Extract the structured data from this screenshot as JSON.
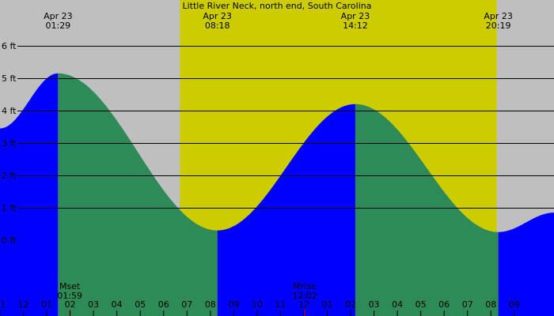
{
  "chart_data": {
    "type": "area",
    "title": "Little River Neck, north end, South Carolina",
    "y_ticks": [
      "0 ft",
      "1 ft",
      "2 ft",
      "3 ft",
      "4 ft",
      "5 ft",
      "6 ft"
    ],
    "y_tick_values": [
      0,
      1,
      2,
      3,
      4,
      5,
      6
    ],
    "ylim": [
      -1.5,
      7.0
    ],
    "xlim_hours": [
      -1.0,
      22.7
    ],
    "x_ticks": [
      {
        "label": "1",
        "hour": -1.0
      },
      {
        "label": "12",
        "hour": 0
      },
      {
        "label": "01",
        "hour": 1
      },
      {
        "label": "02",
        "hour": 2
      },
      {
        "label": "03",
        "hour": 3
      },
      {
        "label": "04",
        "hour": 4
      },
      {
        "label": "05",
        "hour": 5
      },
      {
        "label": "06",
        "hour": 6
      },
      {
        "label": "07",
        "hour": 7
      },
      {
        "label": "08",
        "hour": 8
      },
      {
        "label": "09",
        "hour": 9
      },
      {
        "label": "10",
        "hour": 10
      },
      {
        "label": "11",
        "hour": 11
      },
      {
        "label": "12",
        "hour": 12
      },
      {
        "label": "01",
        "hour": 13
      },
      {
        "label": "02",
        "hour": 14
      },
      {
        "label": "03",
        "hour": 15
      },
      {
        "label": "04",
        "hour": 16
      },
      {
        "label": "05",
        "hour": 17
      },
      {
        "label": "06",
        "hour": 18
      },
      {
        "label": "07",
        "hour": 19
      },
      {
        "label": "08",
        "hour": 20
      },
      {
        "label": "09",
        "hour": 21
      }
    ],
    "tide_events": [
      {
        "date": "Apr 23",
        "time": "01:29",
        "hour": 1.483,
        "height_ft": 5.15,
        "kind": "high"
      },
      {
        "date": "Apr 23",
        "time": "08:18",
        "hour": 8.3,
        "height_ft": 0.3,
        "kind": "low"
      },
      {
        "date": "Apr 23",
        "time": "14:12",
        "hour": 14.2,
        "height_ft": 4.2,
        "kind": "high"
      },
      {
        "date": "Apr 23",
        "time": "20:19",
        "hour": 20.317,
        "height_ft": 0.25,
        "kind": "low"
      }
    ],
    "extra_curve_points": [
      {
        "hour": -1.0,
        "height_ft": 3.45
      },
      {
        "hour": 22.7,
        "height_ft": 0.85
      }
    ],
    "daylight": {
      "start_hour": 6.7,
      "end_hour": 20.25
    },
    "moon_events": [
      {
        "label": "Mset",
        "time": "01:59",
        "hour": 1.983
      },
      {
        "label": "Mrise",
        "time": "12:02",
        "hour": 12.033
      }
    ],
    "colors": {
      "background": "#bfbfbf",
      "daylight": "#cccc00",
      "rising": "#0000ff",
      "falling": "#2e8b57",
      "grid": "#000000",
      "moon_tick": "#ff0000"
    }
  }
}
